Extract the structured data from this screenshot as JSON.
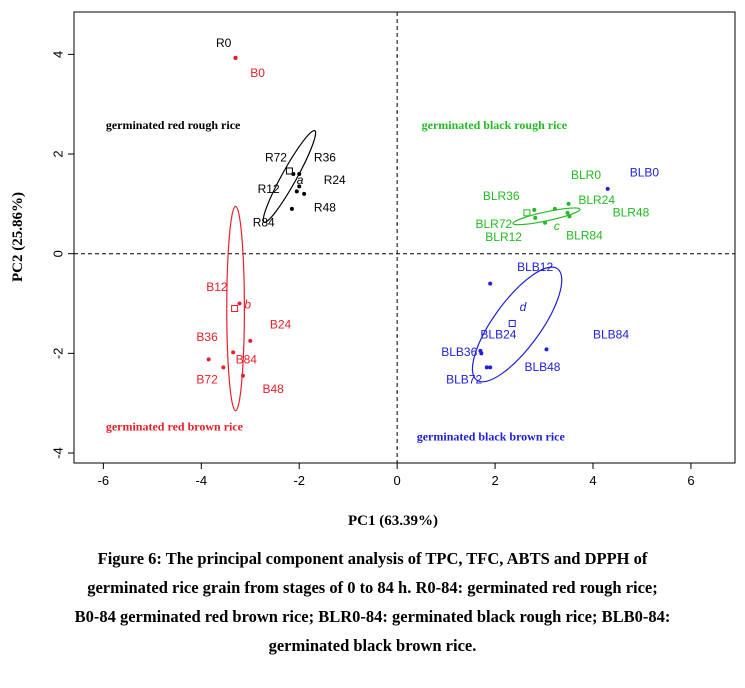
{
  "colors": {
    "red": "#e8202a",
    "black": "#000000",
    "green": "#22bb22",
    "blue": "#2020dd"
  },
  "chart_data": {
    "type": "scatter",
    "xlabel": "PC1 (63.39%)",
    "ylabel": "PC2 (25.86%)",
    "xlim": [
      -6.6,
      6.9
    ],
    "ylim": [
      -4.2,
      4.85
    ],
    "xticks": [
      -6,
      -4,
      -2,
      0,
      2,
      4,
      6
    ],
    "yticks": [
      -4,
      -2,
      0,
      2,
      4
    ],
    "reference_lines": {
      "x": 0,
      "y": 0,
      "style": "dashed"
    },
    "groups": [
      {
        "id": "red-rough",
        "name": "germinated red rough rice",
        "color_key": "black",
        "label_pos": [
          -5.95,
          2.5
        ],
        "centroid": [
          -2.2,
          1.66
        ],
        "centroid_letter": "a",
        "centroid_letter_pos": [
          -2.05,
          1.4
        ],
        "ellipse": {
          "cx": -2.2,
          "cy": 1.55,
          "rx": 0.15,
          "ry": 1.05,
          "angle": 29
        },
        "points": [
          {
            "name": "R0",
            "x": -3.3,
            "y": 3.93,
            "label_pos": [
              -3.7,
              4.15
            ]
          },
          {
            "name": "R72",
            "x": -2.12,
            "y": 1.6,
            "label_pos": [
              -2.7,
              1.85
            ]
          },
          {
            "name": "R36",
            "x": -2.0,
            "y": 1.6,
            "label_pos": [
              -1.7,
              1.85
            ]
          },
          {
            "name": "R24",
            "x": -1.9,
            "y": 1.2,
            "label_pos": [
              -1.5,
              1.4
            ]
          },
          {
            "name": "R12",
            "x": -2.05,
            "y": 1.25,
            "label_pos": [
              -2.85,
              1.22
            ]
          },
          {
            "name": "R48",
            "x": -2.0,
            "y": 1.35,
            "label_pos": [
              -1.7,
              0.85
            ]
          },
          {
            "name": "R84",
            "x": -2.15,
            "y": 0.9,
            "label_pos": [
              -2.95,
              0.55
            ]
          }
        ]
      },
      {
        "id": "red-brown",
        "name": "germinated red brown rice",
        "color_key": "red",
        "label_pos": [
          -5.95,
          -3.55
        ],
        "centroid": [
          -3.32,
          -1.1
        ],
        "centroid_letter": "b",
        "centroid_letter_pos": [
          -3.12,
          -1.1
        ],
        "ellipse": {
          "cx": -3.3,
          "cy": -1.1,
          "rx": 0.18,
          "ry": 2.05,
          "angle": 0
        },
        "points": [
          {
            "name": "B0",
            "x": -3.3,
            "y": 3.93,
            "label_pos": [
              -3.0,
              3.55
            ]
          },
          {
            "name": "B12",
            "x": -3.22,
            "y": -1.0,
            "label_pos": [
              -3.9,
              -0.75
            ]
          },
          {
            "name": "B24",
            "x": -3.0,
            "y": -1.75,
            "label_pos": [
              -2.6,
              -1.5
            ]
          },
          {
            "name": "B36",
            "x": -3.85,
            "y": -2.12,
            "label_pos": [
              -4.1,
              -1.75
            ]
          },
          {
            "name": "B84",
            "x": -3.35,
            "y": -1.98,
            "label_pos": [
              -3.3,
              -2.2
            ]
          },
          {
            "name": "B72",
            "x": -3.55,
            "y": -2.28,
            "label_pos": [
              -4.1,
              -2.6
            ]
          },
          {
            "name": "B48",
            "x": -3.15,
            "y": -2.45,
            "label_pos": [
              -2.75,
              -2.8
            ]
          }
        ]
      },
      {
        "id": "black-rough",
        "name": "germinated black rough rice",
        "color_key": "green",
        "label_pos": [
          0.5,
          2.5
        ],
        "centroid": [
          2.65,
          0.82
        ],
        "centroid_letter": "c",
        "centroid_letter_pos": [
          3.2,
          0.48
        ],
        "ellipse": {
          "cx": 3.05,
          "cy": 0.75,
          "rx": 0.7,
          "ry": 0.09,
          "angle": -12
        },
        "points": [
          {
            "name": "BLR0",
            "x": 3.5,
            "y": 1.0,
            "label_pos": [
              3.55,
              1.5
            ]
          },
          {
            "name": "BLR24",
            "x": 3.22,
            "y": 0.9,
            "label_pos": [
              3.7,
              1.0
            ]
          },
          {
            "name": "BLR36",
            "x": 2.8,
            "y": 0.88,
            "label_pos": [
              1.75,
              1.08
            ]
          },
          {
            "name": "BLR48",
            "x": 3.48,
            "y": 0.82,
            "label_pos": [
              4.4,
              0.75
            ]
          },
          {
            "name": "BLR72",
            "x": 2.82,
            "y": 0.72,
            "label_pos": [
              1.6,
              0.52
            ]
          },
          {
            "name": "BLR12",
            "x": 3.02,
            "y": 0.62,
            "label_pos": [
              1.8,
              0.25
            ]
          },
          {
            "name": "BLR84",
            "x": 3.52,
            "y": 0.75,
            "label_pos": [
              3.45,
              0.28
            ]
          }
        ]
      },
      {
        "id": "black-brown",
        "name": "germinated black brown rice",
        "color_key": "blue",
        "label_pos": [
          0.4,
          -3.75
        ],
        "centroid": [
          2.35,
          -1.4
        ],
        "centroid_letter": "d",
        "centroid_letter_pos": [
          2.5,
          -1.15
        ],
        "ellipse": {
          "cx": 2.45,
          "cy": -1.42,
          "rx": 0.48,
          "ry": 1.38,
          "angle": 36
        },
        "points": [
          {
            "name": "BLB0",
            "x": 4.3,
            "y": 1.3,
            "label_pos": [
              4.75,
              1.55
            ]
          },
          {
            "name": "BLB12",
            "x": 1.9,
            "y": -0.6,
            "label_pos": [
              2.45,
              -0.35
            ]
          },
          {
            "name": "BLB24",
            "x": 1.72,
            "y": -2.0,
            "label_pos": [
              1.7,
              -1.7
            ]
          },
          {
            "name": "BLB84",
            "x": 3.05,
            "y": -1.92,
            "label_pos": [
              4.0,
              -1.7
            ]
          },
          {
            "name": "BLB36",
            "x": 1.7,
            "y": -1.95,
            "label_pos": [
              0.9,
              -2.05
            ]
          },
          {
            "name": "BLB48",
            "x": 1.9,
            "y": -2.28,
            "label_pos": [
              2.6,
              -2.35
            ]
          },
          {
            "name": "BLB72",
            "x": 1.83,
            "y": -2.28,
            "label_pos": [
              1.0,
              -2.6
            ]
          }
        ]
      }
    ]
  },
  "caption": {
    "lines": [
      "Figure 6: The principal component analysis of TPC, TFC, ABTS and DPPH of",
      "germinated rice grain from stages of 0 to 84 h. R0-84: germinated red rough rice;",
      "B0-84 germinated red brown rice; BLR0-84: germinated black rough rice; BLB0-84:",
      "germinated black brown rice."
    ]
  }
}
